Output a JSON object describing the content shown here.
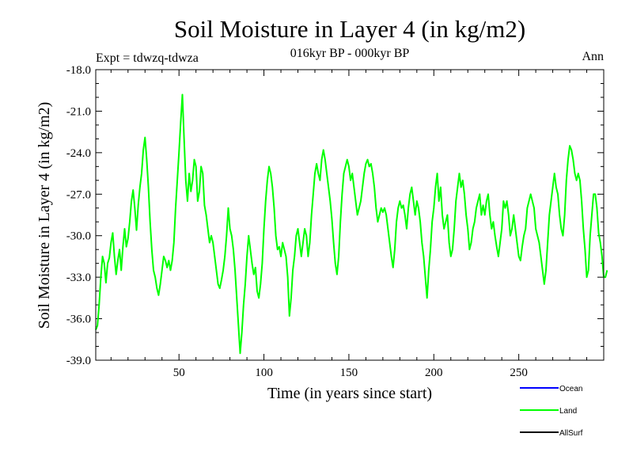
{
  "chart_data": {
    "type": "line",
    "title": "Soil Moisture in Layer 4 (in kg/m2)",
    "subtitle": "016kyr BP - 000kyr BP",
    "left_label": "Expt = tdwzq-tdwza",
    "right_label": "Ann",
    "xlabel": "Time (in years since start)",
    "ylabel": "Soil Moisture in Layer 4 (in kg/m2)",
    "xlim": [
      1,
      300
    ],
    "ylim": [
      -39,
      -18
    ],
    "x_ticks": [
      50,
      100,
      150,
      200,
      250
    ],
    "y_ticks": [
      "-18.0",
      "-21.0",
      "-24.0",
      "-27.0",
      "-30.0",
      "-33.0",
      "-36.0",
      "-39.0"
    ],
    "y_tick_values": [
      -18,
      -21,
      -24,
      -27,
      -30,
      -33,
      -36,
      -39
    ],
    "legend": [
      {
        "name": "Ocean",
        "color": "#0000ff"
      },
      {
        "name": "Land",
        "color": "#00ff00"
      },
      {
        "name": "AllSurf",
        "color": "#000000"
      }
    ],
    "series": [
      {
        "name": "Land",
        "color": "#00ff00",
        "x_start": 1,
        "x_step": 1,
        "values": [
          -36.8,
          -36.5,
          -35.0,
          -33.0,
          -31.5,
          -32.0,
          -33.4,
          -32.0,
          -31.6,
          -30.5,
          -29.8,
          -31.5,
          -32.8,
          -31.8,
          -31.0,
          -32.5,
          -30.8,
          -29.5,
          -30.8,
          -30.2,
          -29.0,
          -27.5,
          -26.7,
          -28.0,
          -29.6,
          -27.8,
          -26.5,
          -25.5,
          -23.8,
          -22.9,
          -24.5,
          -26.5,
          -29.0,
          -31.0,
          -32.5,
          -33.0,
          -33.8,
          -34.3,
          -33.5,
          -32.5,
          -31.5,
          -31.8,
          -32.3,
          -31.8,
          -32.5,
          -31.8,
          -30.5,
          -28.0,
          -26.0,
          -24.0,
          -21.8,
          -19.8,
          -23.0,
          -26.0,
          -27.5,
          -25.5,
          -26.8,
          -26.0,
          -24.5,
          -25.0,
          -27.5,
          -26.8,
          -25.0,
          -25.5,
          -27.8,
          -28.5,
          -29.5,
          -30.5,
          -30.0,
          -30.5,
          -31.5,
          -32.5,
          -33.5,
          -33.8,
          -33.2,
          -32.5,
          -31.5,
          -30.0,
          -28.0,
          -29.5,
          -30.0,
          -31.0,
          -32.5,
          -34.5,
          -36.5,
          -38.5,
          -37.0,
          -35.0,
          -33.5,
          -31.5,
          -30.0,
          -31.0,
          -32.0,
          -32.8,
          -32.3,
          -34.0,
          -34.5,
          -33.5,
          -32.0,
          -29.5,
          -27.5,
          -26.0,
          -25.0,
          -25.5,
          -26.5,
          -28.0,
          -30.0,
          -31.0,
          -30.8,
          -31.5,
          -30.5,
          -31.0,
          -31.5,
          -33.0,
          -35.8,
          -34.5,
          -32.5,
          -31.5,
          -30.0,
          -29.5,
          -30.5,
          -31.5,
          -30.5,
          -29.5,
          -30.0,
          -31.5,
          -30.5,
          -28.5,
          -27.0,
          -25.5,
          -24.8,
          -25.5,
          -26.0,
          -24.5,
          -23.8,
          -24.5,
          -25.5,
          -26.5,
          -27.5,
          -28.8,
          -30.5,
          -32.0,
          -32.8,
          -31.5,
          -29.0,
          -27.0,
          -25.5,
          -25.0,
          -24.5,
          -25.0,
          -26.0,
          -25.5,
          -26.5,
          -27.5,
          -28.5,
          -28.0,
          -27.5,
          -26.5,
          -25.5,
          -24.8,
          -24.5,
          -25.0,
          -24.8,
          -25.5,
          -26.5,
          -28.0,
          -29.0,
          -28.5,
          -28.0,
          -28.3,
          -28.0,
          -28.5,
          -29.5,
          -30.5,
          -31.5,
          -32.3,
          -31.0,
          -29.0,
          -28.0,
          -27.5,
          -28.0,
          -27.8,
          -28.5,
          -29.5,
          -28.0,
          -27.0,
          -26.5,
          -27.5,
          -28.5,
          -27.5,
          -28.0,
          -29.0,
          -30.5,
          -31.5,
          -33.0,
          -34.5,
          -32.5,
          -31.0,
          -29.0,
          -28.0,
          -26.5,
          -25.5,
          -27.5,
          -26.5,
          -28.5,
          -29.5,
          -29.0,
          -28.5,
          -30.5,
          -31.5,
          -31.0,
          -29.5,
          -27.5,
          -26.5,
          -25.5,
          -26.5,
          -26.0,
          -27.0,
          -28.5,
          -29.5,
          -31.0,
          -30.5,
          -29.5,
          -29.0,
          -28.0,
          -27.5,
          -27.0,
          -28.5,
          -27.8,
          -28.5,
          -27.5,
          -27.0,
          -28.5,
          -29.5,
          -29.0,
          -30.0,
          -30.8,
          -31.5,
          -30.5,
          -29.5,
          -27.5,
          -28.0,
          -27.5,
          -28.5,
          -30.0,
          -29.5,
          -28.5,
          -29.5,
          -30.5,
          -31.5,
          -31.8,
          -30.8,
          -30.0,
          -29.5,
          -28.0,
          -27.5,
          -27.0,
          -27.5,
          -28.0,
          -29.5,
          -30.0,
          -30.5,
          -31.5,
          -32.5,
          -33.5,
          -32.5,
          -30.5,
          -28.5,
          -27.5,
          -26.5,
          -25.5,
          -26.5,
          -27.0,
          -28.5,
          -29.5,
          -30.0,
          -28.5,
          -26.0,
          -24.5,
          -23.5,
          -23.8,
          -24.5,
          -25.5,
          -26.0,
          -25.5,
          -26.0,
          -27.5,
          -29.5,
          -31.0,
          -33.0,
          -32.5,
          -30.0,
          -28.5,
          -27.0,
          -27.0,
          -28.0,
          -29.8,
          -30.5,
          -31.5,
          -33.0,
          -33.0,
          -32.5
        ]
      }
    ]
  }
}
